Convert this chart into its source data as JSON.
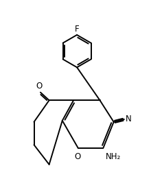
{
  "bg_color": "#ffffff",
  "line_color": "#000000",
  "line_width": 1.4,
  "font_size": 8.5,
  "figsize": [
    2.2,
    2.61
  ],
  "dpi": 100,
  "xlim": [
    0,
    10
  ],
  "ylim": [
    0,
    11.8
  ]
}
